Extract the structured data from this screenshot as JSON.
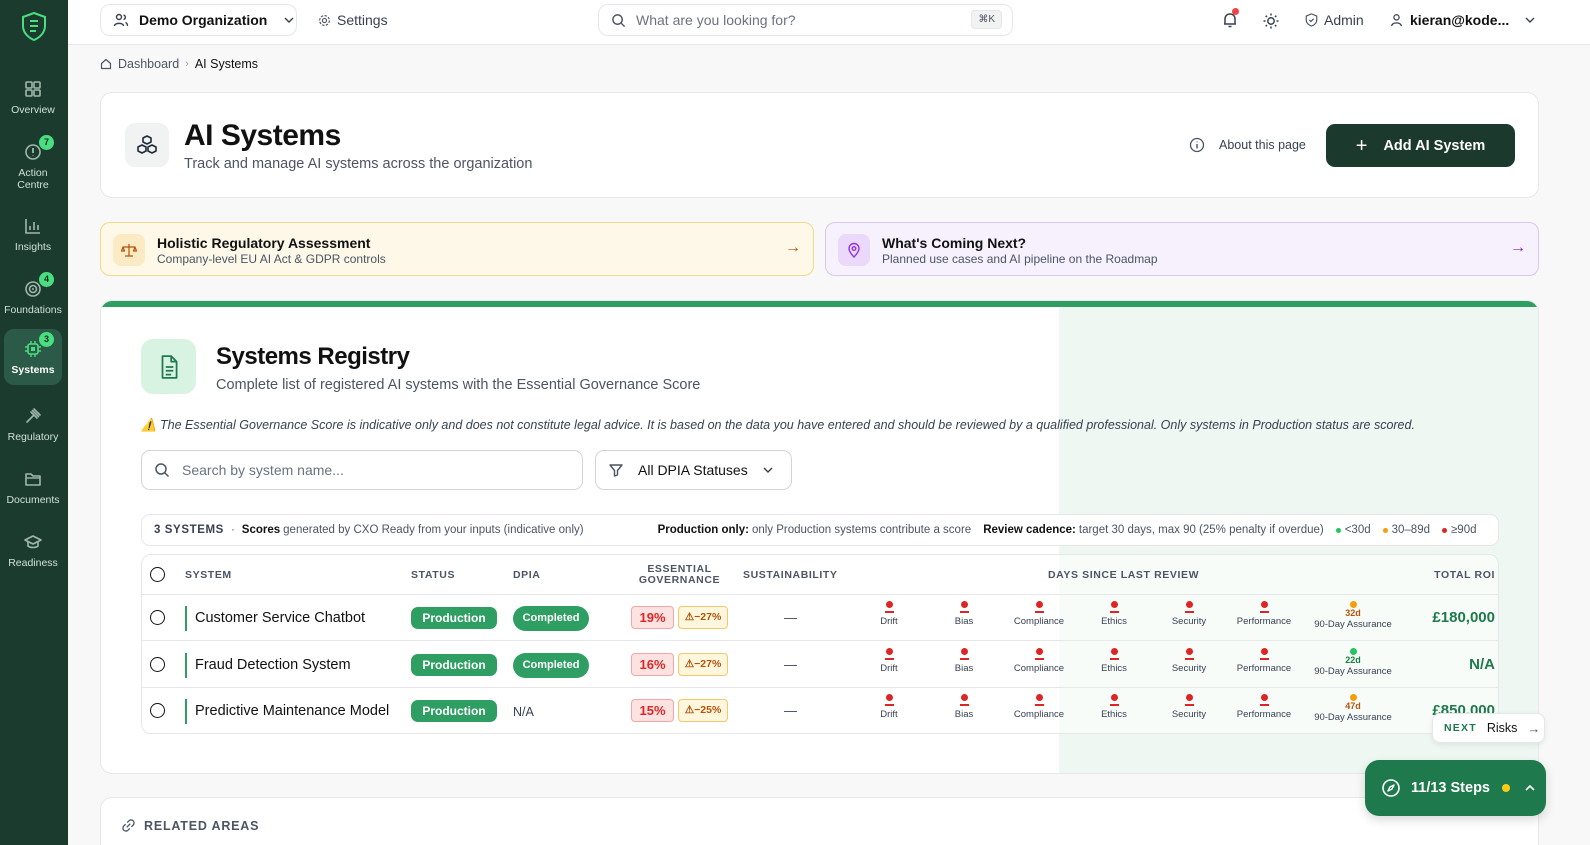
{
  "sidebar": {
    "items": [
      {
        "label": "Overview",
        "icon": "grid-icon",
        "badge": ""
      },
      {
        "label": "Action Centre",
        "icon": "alert-circle-icon",
        "badge": "7"
      },
      {
        "label": "Insights",
        "icon": "bar-chart-icon",
        "badge": ""
      },
      {
        "label": "Foundations",
        "icon": "target-icon",
        "badge": "4"
      },
      {
        "label": "Systems",
        "icon": "cpu-icon",
        "badge": "3"
      },
      {
        "label": "Regulatory",
        "icon": "gavel-icon",
        "badge": ""
      },
      {
        "label": "Documents",
        "icon": "folder-icon",
        "badge": ""
      },
      {
        "label": "Readiness",
        "icon": "graduation-cap-icon",
        "badge": ""
      }
    ]
  },
  "topbar": {
    "org": "Demo Organization",
    "settings": "Settings",
    "search_placeholder": "What are you looking for?",
    "shortcut": "⌘K",
    "admin": "Admin",
    "user": "kieran@kode..."
  },
  "breadcrumb": {
    "home": "Dashboard",
    "current": "AI Systems"
  },
  "header": {
    "title": "AI Systems",
    "subtitle": "Track and manage AI systems across the organization",
    "about": "About this page",
    "add_button": "Add AI System"
  },
  "promos": [
    {
      "title": "Holistic Regulatory Assessment",
      "subtitle": "Company-level EU AI Act & GDPR controls"
    },
    {
      "title": "What's Coming Next?",
      "subtitle": "Planned use cases and AI pipeline on the Roadmap"
    }
  ],
  "registry": {
    "title": "Systems Registry",
    "subtitle": "Complete list of registered AI systems with the Essential Governance Score",
    "disclaimer": "⚠️ The Essential Governance Score is indicative only and does not constitute legal advice. It is based on the data you have entered and should be reviewed by a qualified professional. Only systems in Production status are scored.",
    "search_placeholder": "Search by system name...",
    "filter": "All DPIA Statuses",
    "summary": {
      "count": "3 SYSTEMS",
      "scores_label": "Scores",
      "scores_text": "generated by CXO Ready from your inputs (indicative only)",
      "production_label": "Production only:",
      "production_text": "only Production systems contribute a score",
      "cadence_label": "Review cadence:",
      "cadence_text": "target 30 days, max 90 (25% penalty if overdue)",
      "legend": [
        {
          "label": "<30d",
          "color": "#22c55e"
        },
        {
          "label": "30–89d",
          "color": "#f59e0b"
        },
        {
          "label": "≥90d",
          "color": "#dc2626"
        }
      ]
    },
    "columns": {
      "system": "SYSTEM",
      "status": "STATUS",
      "dpia": "DPIA",
      "governance_1": "ESSENTIAL",
      "governance_2": "GOVERNANCE",
      "sustainability": "SUSTAINABILITY",
      "review": "DAYS SINCE LAST REVIEW",
      "roi": "TOTAL ROI"
    },
    "review_labels": [
      "Drift",
      "Bias",
      "Compliance",
      "Ethics",
      "Security",
      "Performance",
      "90-Day Assurance"
    ],
    "rows": [
      {
        "name": "Customer Service Chatbot",
        "status": "Production",
        "dpia": "Completed",
        "score": "19%",
        "penalty": "⚠−27%",
        "sustainability": "—",
        "assurance": "32d",
        "assurance_color": "#f59e0b",
        "roi": "£180,000"
      },
      {
        "name": "Fraud Detection System",
        "status": "Production",
        "dpia": "Completed",
        "score": "16%",
        "penalty": "⚠−27%",
        "sustainability": "—",
        "assurance": "22d",
        "assurance_color": "#22c55e",
        "roi": "N/A"
      },
      {
        "name": "Predictive Maintenance Model",
        "status": "Production",
        "dpia": "N/A",
        "score": "15%",
        "penalty": "⚠−25%",
        "sustainability": "—",
        "assurance": "47d",
        "assurance_color": "#f59e0b",
        "roi": "£850,000"
      }
    ]
  },
  "related": {
    "label": "RELATED AREAS"
  },
  "next": {
    "label": "NEXT",
    "target": "Risks"
  },
  "steps": {
    "label": "11/13 Steps"
  }
}
